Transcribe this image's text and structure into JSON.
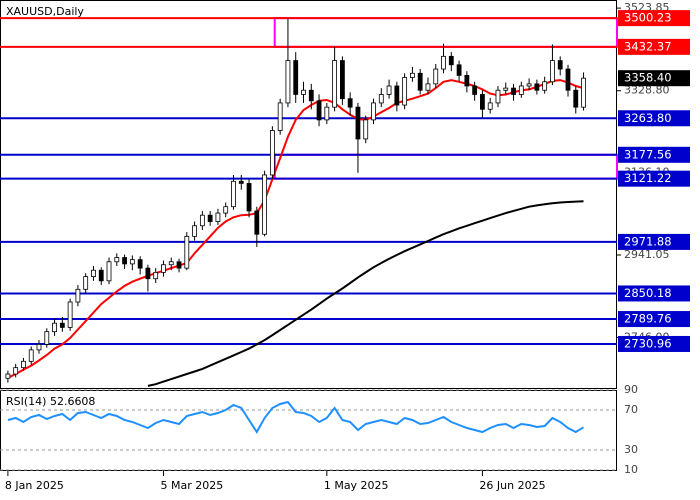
{
  "chart_data": [
    {
      "type": "candlestick",
      "title": "XAUUSD,Daily",
      "x": [
        0,
        1,
        2,
        3,
        4,
        5,
        6,
        7,
        8,
        9,
        10,
        11,
        12,
        13,
        14,
        15,
        16,
        17,
        18,
        19,
        20,
        21,
        22,
        23,
        24,
        25,
        26,
        27,
        28,
        29,
        30,
        31,
        32,
        33,
        34,
        35,
        36,
        37,
        38,
        39,
        40,
        41,
        42,
        43,
        44,
        45,
        46,
        47,
        48,
        49,
        50,
        51,
        52,
        53,
        54,
        55,
        56,
        57,
        58,
        59,
        60,
        61,
        62,
        63,
        64,
        65,
        66,
        67,
        68,
        69,
        70,
        71,
        72,
        73,
        74
      ],
      "open": [
        2650,
        2660,
        2675,
        2690,
        2717,
        2730,
        2760,
        2780,
        2770,
        2830,
        2860,
        2890,
        2905,
        2880,
        2925,
        2935,
        2920,
        2930,
        2910,
        2885,
        2900,
        2918,
        2925,
        2910,
        2985,
        3010,
        3035,
        3020,
        3040,
        3055,
        3115,
        3110,
        3045,
        2990,
        3130,
        3235,
        3300,
        3400,
        3320,
        3330,
        3305,
        3260,
        3290,
        3400,
        3310,
        3290,
        3215,
        3260,
        3300,
        3320,
        3340,
        3295,
        3360,
        3370,
        3330,
        3345,
        3380,
        3410,
        3390,
        3365,
        3340,
        3320,
        3285,
        3300,
        3330,
        3335,
        3320,
        3340,
        3345,
        3330,
        3350,
        3400,
        3380,
        3330,
        3290
      ],
      "high": [
        2668,
        2684,
        2698,
        2725,
        2740,
        2768,
        2790,
        2795,
        2838,
        2870,
        2898,
        2915,
        2912,
        2935,
        2945,
        2942,
        2940,
        2938,
        2918,
        2910,
        2928,
        2935,
        2932,
        2995,
        3020,
        3045,
        3045,
        3050,
        3065,
        3130,
        3130,
        3120,
        3055,
        3140,
        3245,
        3310,
        3500,
        3420,
        3350,
        3345,
        3320,
        3300,
        3432,
        3410,
        3325,
        3300,
        3270,
        3310,
        3335,
        3355,
        3350,
        3370,
        3385,
        3380,
        3360,
        3392,
        3440,
        3420,
        3400,
        3375,
        3350,
        3330,
        3312,
        3340,
        3348,
        3345,
        3350,
        3358,
        3355,
        3362,
        3438,
        3410,
        3390,
        3340,
        3372
      ],
      "low": [
        2640,
        2652,
        2668,
        2682,
        2708,
        2722,
        2750,
        2760,
        2762,
        2820,
        2850,
        2880,
        2870,
        2872,
        2915,
        2908,
        2905,
        2895,
        2855,
        2875,
        2890,
        2905,
        2900,
        2905,
        2975,
        3000,
        3010,
        3012,
        3030,
        3048,
        3095,
        3030,
        2960,
        2985,
        3120,
        3225,
        3290,
        3300,
        3300,
        3285,
        3245,
        3250,
        3280,
        3295,
        3270,
        3135,
        3205,
        3250,
        3290,
        3310,
        3280,
        3285,
        3350,
        3320,
        3320,
        3335,
        3370,
        3375,
        3350,
        3325,
        3305,
        3265,
        3275,
        3290,
        3320,
        3305,
        3312,
        3330,
        3320,
        3322,
        3342,
        3365,
        3315,
        3275,
        3282
      ],
      "close": [
        2660,
        2675,
        2690,
        2717,
        2730,
        2760,
        2780,
        2770,
        2830,
        2860,
        2890,
        2905,
        2880,
        2925,
        2935,
        2920,
        2930,
        2910,
        2885,
        2900,
        2918,
        2925,
        2910,
        2985,
        3010,
        3035,
        3020,
        3040,
        3055,
        3115,
        3110,
        3045,
        2990,
        3130,
        3235,
        3300,
        3400,
        3320,
        3330,
        3305,
        3260,
        3290,
        3400,
        3310,
        3290,
        3215,
        3260,
        3300,
        3320,
        3340,
        3295,
        3360,
        3370,
        3330,
        3345,
        3380,
        3410,
        3390,
        3365,
        3340,
        3320,
        3285,
        3300,
        3330,
        3335,
        3320,
        3340,
        3345,
        3330,
        3350,
        3400,
        3380,
        3330,
        3290,
        3358.4
      ],
      "up_color": "#ffffff",
      "down_color": "#000000",
      "outline_color": "#000000",
      "lines": [
        {
          "color": "#ff0000",
          "values": [
            2651,
            2660,
            2670,
            2680,
            2692,
            2705,
            2720,
            2730,
            2745,
            2765,
            2785,
            2805,
            2825,
            2840,
            2855,
            2868,
            2878,
            2885,
            2892,
            2898,
            2904,
            2910,
            2916,
            2922,
            2945,
            2965,
            2985,
            3005,
            3020,
            3030,
            3035,
            3036,
            3040,
            3070,
            3120,
            3170,
            3220,
            3260,
            3283,
            3295,
            3305,
            3307,
            3300,
            3285,
            3272,
            3262,
            3260,
            3268,
            3278,
            3288,
            3300,
            3305,
            3310,
            3316,
            3322,
            3335,
            3350,
            3354,
            3350,
            3345,
            3340,
            3332,
            3322,
            3318,
            3320,
            3325,
            3330,
            3332,
            3338,
            3345,
            3352,
            3354,
            3348,
            3340,
            3335
          ]
        },
        {
          "color": "#000000",
          "values": [
            null,
            null,
            null,
            null,
            null,
            null,
            null,
            null,
            null,
            null,
            null,
            null,
            null,
            null,
            null,
            null,
            null,
            null,
            2632,
            2636,
            2642,
            2648,
            2654,
            2660,
            2666,
            2672,
            2680,
            2688,
            2696,
            2704,
            2712,
            2720,
            2730,
            2740,
            2752,
            2764,
            2776,
            2788,
            2800,
            2812,
            2825,
            2838,
            2850,
            2862,
            2875,
            2888,
            2900,
            2912,
            2922,
            2932,
            2941,
            2950,
            2958,
            2966,
            2974,
            2982,
            2990,
            2997,
            3004,
            3010,
            3016,
            3022,
            3028,
            3034,
            3040,
            3045,
            3050,
            3055,
            3058,
            3061,
            3063,
            3065,
            3066,
            3067,
            3068
          ]
        }
      ],
      "ylim": [
        2627,
        3543
      ],
      "yticks": [
        3523.85,
        {
          "value": 3328.8,
          "label": "3328.80"
        },
        {
          "value": 3136.1,
          "label": "3136.10"
        },
        2941.05,
        {
          "value": 2746,
          "label": "2746.00"
        }
      ],
      "xlim": [
        -0.5,
        78.3
      ],
      "levels": [
        {
          "value": 3500.23,
          "color": "#ff0000"
        },
        {
          "value": 3432.37,
          "color": "#ff0000"
        },
        {
          "value": 3263.8,
          "label": "3263.80",
          "color": "#0000cc"
        },
        {
          "value": 3177.56,
          "color": "#0000cc"
        },
        {
          "value": 3121.22,
          "color": "#0000cc"
        },
        {
          "value": 2971.88,
          "color": "#0000cc"
        },
        {
          "value": 2850.18,
          "color": "#0000cc"
        },
        {
          "value": 2789.76,
          "color": "#0000cc"
        },
        {
          "value": 2730.96,
          "color": "#0000cc"
        }
      ],
      "zones": [
        {
          "x0": 34.3,
          "top": 3500.23,
          "bottom": 3432.37,
          "color": "#ff00ff"
        },
        {
          "x0": 34.3,
          "top": 3177.56,
          "bottom": 3121.22,
          "color": "#ff00ff"
        }
      ],
      "last_price": {
        "value": 3358.4,
        "label": "3358.40",
        "color": "#000000"
      }
    },
    {
      "type": "line",
      "title": "RSI(14) 52.6608",
      "x": [
        0,
        1,
        2,
        3,
        4,
        5,
        6,
        7,
        8,
        9,
        10,
        11,
        12,
        13,
        14,
        15,
        16,
        17,
        18,
        19,
        20,
        21,
        22,
        23,
        24,
        25,
        26,
        27,
        28,
        29,
        30,
        31,
        32,
        33,
        34,
        35,
        36,
        37,
        38,
        39,
        40,
        41,
        42,
        43,
        44,
        45,
        46,
        47,
        48,
        49,
        50,
        51,
        52,
        53,
        54,
        55,
        56,
        57,
        58,
        59,
        60,
        61,
        62,
        63,
        64,
        65,
        66,
        67,
        68,
        69,
        70,
        71,
        72,
        73,
        74
      ],
      "values": [
        60,
        62,
        58,
        63,
        65,
        61,
        64,
        66,
        60,
        67,
        68,
        65,
        62,
        66,
        64,
        60,
        58,
        55,
        52,
        57,
        60,
        58,
        56,
        64,
        66,
        68,
        65,
        67,
        70,
        75,
        72,
        60,
        48,
        62,
        72,
        76,
        78,
        68,
        67,
        64,
        58,
        62,
        72,
        60,
        58,
        50,
        56,
        58,
        60,
        58,
        56,
        62,
        60,
        56,
        57,
        60,
        63,
        58,
        55,
        52,
        50,
        48,
        52,
        55,
        56,
        52,
        56,
        55,
        53,
        54,
        62,
        58,
        52,
        48,
        52.6608
      ],
      "color": "#1e90ff",
      "ylim": [
        10,
        90
      ],
      "yticks": [
        10,
        30,
        70,
        90
      ],
      "grid": true,
      "xlim": [
        -0.5,
        78.3
      ],
      "xticks": [
        {
          "value": 0,
          "label": "8 Jan 2025"
        },
        {
          "value": 20,
          "label": "5 Mar 2025"
        },
        {
          "value": 41,
          "label": "1 May 2025"
        },
        {
          "value": 61,
          "label": "26 Jun 2025"
        }
      ]
    }
  ]
}
